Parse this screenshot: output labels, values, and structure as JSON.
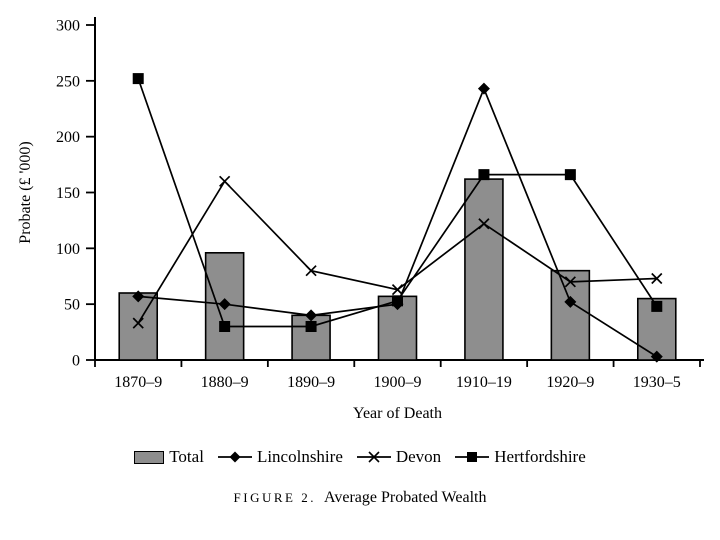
{
  "figure": {
    "caption_label": "FIGURE 2.",
    "caption_title": "Average Probated Wealth"
  },
  "chart_data": {
    "type": "combo-bar-line",
    "categories": [
      "1870–9",
      "1880–9",
      "1890–9",
      "1900–9",
      "1910–19",
      "1920–9",
      "1930–5"
    ],
    "series": [
      {
        "name": "Total",
        "type": "bar",
        "marker": "none",
        "color": "#8e8e8e",
        "values": [
          60,
          96,
          40,
          57,
          162,
          80,
          55
        ]
      },
      {
        "name": "Lincolnshire",
        "type": "line",
        "marker": "diamond",
        "color": "#000000",
        "values": [
          57,
          50,
          40,
          50,
          243,
          52,
          3
        ]
      },
      {
        "name": "Devon",
        "type": "line",
        "marker": "x",
        "color": "#000000",
        "values": [
          33,
          160,
          80,
          63,
          122,
          70,
          73
        ]
      },
      {
        "name": "Hertfordshire",
        "type": "line",
        "marker": "square",
        "color": "#000000",
        "values": [
          252,
          30,
          30,
          53,
          166,
          166,
          48
        ]
      }
    ],
    "xlabel": "Year of Death",
    "ylabel": "Probate (£ '000)",
    "ylim": [
      0,
      300
    ],
    "yticks": [
      0,
      50,
      100,
      150,
      200,
      250,
      300
    ],
    "grid": false,
    "legend_position": "bottom",
    "axis_color": "#000000",
    "background_color": "#ffffff"
  }
}
